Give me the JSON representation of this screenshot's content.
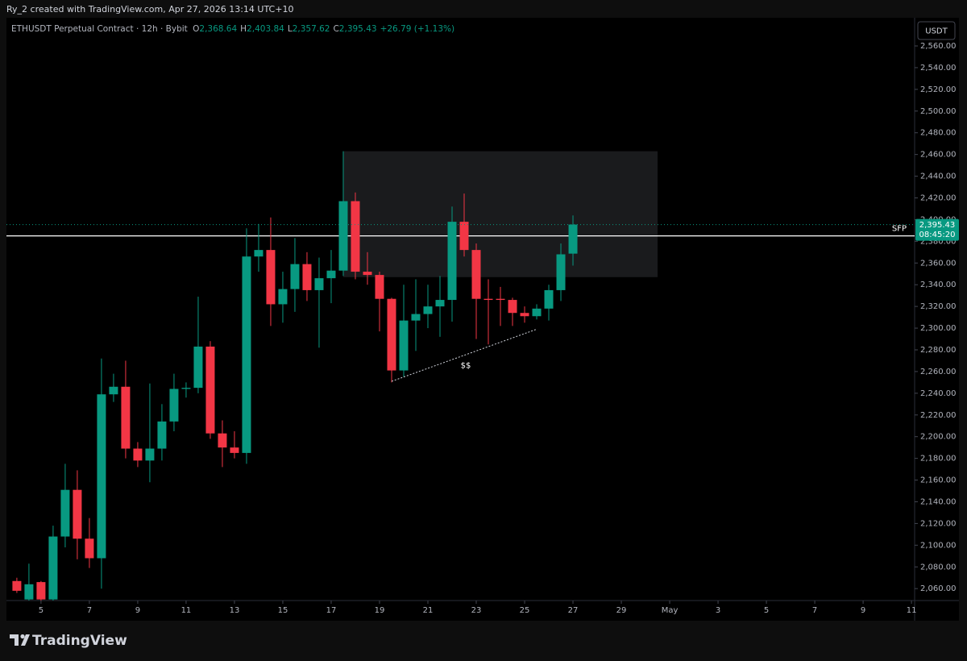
{
  "attribution": "Ry_2 created with TradingView.com, Apr 27, 2026 13:14 UTC+10",
  "logo": "TradingView",
  "chart_data": {
    "type": "candlestick",
    "symbol": "ETHUSDT Perpetual Contract · 12h · Bybit",
    "legend": [
      {
        "key": "O",
        "text": "2,368.64"
      },
      {
        "key": "H",
        "text": "2,403.84"
      },
      {
        "key": "L",
        "text": "2,357.62"
      },
      {
        "key": "C",
        "text": "2,395.43"
      }
    ],
    "change": "+26.79 (+1.13%)",
    "currency": "USDT",
    "last_price_label": "2,395.43",
    "countdown": "08:45:20",
    "up_color": "#089981",
    "down_color": "#f23645",
    "x": [
      4,
      4.5,
      5,
      5.5,
      6,
      6.5,
      7,
      7.5,
      8,
      8.5,
      9,
      9.5,
      10,
      10.5,
      11,
      11.5,
      12,
      12.5,
      13,
      13.5,
      14,
      14.5,
      15,
      15.5,
      16,
      16.5,
      17,
      17.5,
      18,
      18.5,
      19,
      19.5,
      20,
      20.5,
      21,
      21.5,
      22,
      22.5,
      23,
      23.5,
      24,
      24.5,
      25,
      25.5,
      26,
      26.5,
      27
    ],
    "open": [
      2067,
      2050,
      2066,
      2050,
      2108,
      2151,
      2106,
      2088,
      2239,
      2246,
      2189,
      2178,
      2189,
      2214,
      2244,
      2245,
      2283,
      2203,
      2190,
      2185,
      2366,
      2372,
      2322,
      2336,
      2359,
      2335,
      2346,
      2353,
      2417,
      2352,
      2349,
      2327,
      2261,
      2307,
      2313,
      2320,
      2326,
      2398,
      2372,
      2327,
      2327,
      2326,
      2314,
      2311,
      2318,
      2335,
      2368.64
    ],
    "high": [
      2070,
      2083,
      2067,
      2118,
      2175,
      2169,
      2125,
      2272,
      2258,
      2270,
      2195,
      2249,
      2230,
      2258,
      2250,
      2329,
      2288,
      2215,
      2205,
      2392,
      2396,
      2402,
      2352,
      2383,
      2370,
      2365,
      2372,
      2463,
      2425,
      2370,
      2352,
      2328,
      2340,
      2345,
      2340,
      2348,
      2412,
      2424,
      2378,
      2345,
      2338,
      2328,
      2320,
      2322,
      2340,
      2378,
      2403.84
    ],
    "low": [
      2056,
      2048,
      2048,
      2048,
      2098,
      2087,
      2079,
      2060,
      2232,
      2180,
      2172,
      2158,
      2178,
      2205,
      2236,
      2240,
      2198,
      2172,
      2180,
      2175,
      2352,
      2302,
      2305,
      2315,
      2325,
      2282,
      2323,
      2348,
      2345,
      2340,
      2297,
      2250,
      2255,
      2279,
      2300,
      2292,
      2306,
      2366,
      2290,
      2285,
      2302,
      2302,
      2305,
      2308,
      2307,
      2325,
      2357.62
    ],
    "close": [
      2058,
      2064,
      2050,
      2108,
      2151,
      2106,
      2088,
      2239,
      2246,
      2189,
      2178,
      2189,
      2214,
      2244,
      2245,
      2283,
      2203,
      2190,
      2185,
      2366,
      2372,
      2322,
      2336,
      2359,
      2335,
      2346,
      2353,
      2417,
      2352,
      2349,
      2327,
      2261,
      2307,
      2313,
      2320,
      2326,
      2398,
      2372,
      2327,
      2326,
      2326,
      2314,
      2311,
      2318,
      2335,
      2368,
      2395.43
    ],
    "xlim": [
      3.57,
      41.13
    ],
    "ylim": [
      2049,
      2586
    ],
    "xticks": [
      5,
      7,
      9,
      11,
      13,
      15,
      17,
      19,
      21,
      23,
      25,
      27,
      29,
      {
        "value": 31,
        "label": "May"
      },
      {
        "value": 33,
        "label": "3"
      },
      {
        "value": 35,
        "label": "5"
      },
      {
        "value": 37,
        "label": "7"
      },
      {
        "value": 39,
        "label": "9"
      },
      {
        "value": 41,
        "label": "11"
      }
    ],
    "yticks": [
      {
        "value": 2060,
        "label": "2,060.00"
      },
      {
        "value": 2080,
        "label": "2,080.00"
      },
      {
        "value": 2100,
        "label": "2,100.00"
      },
      {
        "value": 2120,
        "label": "2,120.00"
      },
      {
        "value": 2140,
        "label": "2,140.00"
      },
      {
        "value": 2160,
        "label": "2,160.00"
      },
      {
        "value": 2180,
        "label": "2,180.00"
      },
      {
        "value": 2200,
        "label": "2,200.00"
      },
      {
        "value": 2220,
        "label": "2,220.00"
      },
      {
        "value": 2240,
        "label": "2,240.00"
      },
      {
        "value": 2260,
        "label": "2,260.00"
      },
      {
        "value": 2280,
        "label": "2,280.00"
      },
      {
        "value": 2300,
        "label": "2,300.00"
      },
      {
        "value": 2320,
        "label": "2,320.00"
      },
      {
        "value": 2340,
        "label": "2,340.00"
      },
      {
        "value": 2360,
        "label": "2,360.00"
      },
      {
        "value": 2380,
        "label": "2,380.00"
      },
      {
        "value": 2400,
        "label": "2,400.00"
      },
      {
        "value": 2420,
        "label": "2,420.00"
      },
      {
        "value": 2440,
        "label": "2,440.00"
      },
      {
        "value": 2460,
        "label": "2,460.00"
      },
      {
        "value": 2480,
        "label": "2,480.00"
      },
      {
        "value": 2500,
        "label": "2,500.00"
      },
      {
        "value": 2520,
        "label": "2,520.00"
      },
      {
        "value": 2540,
        "label": "2,540.00"
      },
      {
        "value": 2560,
        "label": "2,560.00"
      }
    ],
    "zone": {
      "x": [
        17.5,
        30.5
      ],
      "y": [
        2347,
        2463
      ]
    },
    "level": {
      "value": 2385,
      "label": "SFP"
    },
    "trendline": {
      "x": [
        19.5,
        25.5
      ],
      "y": [
        2251,
        2299
      ],
      "label": "$$"
    }
  }
}
